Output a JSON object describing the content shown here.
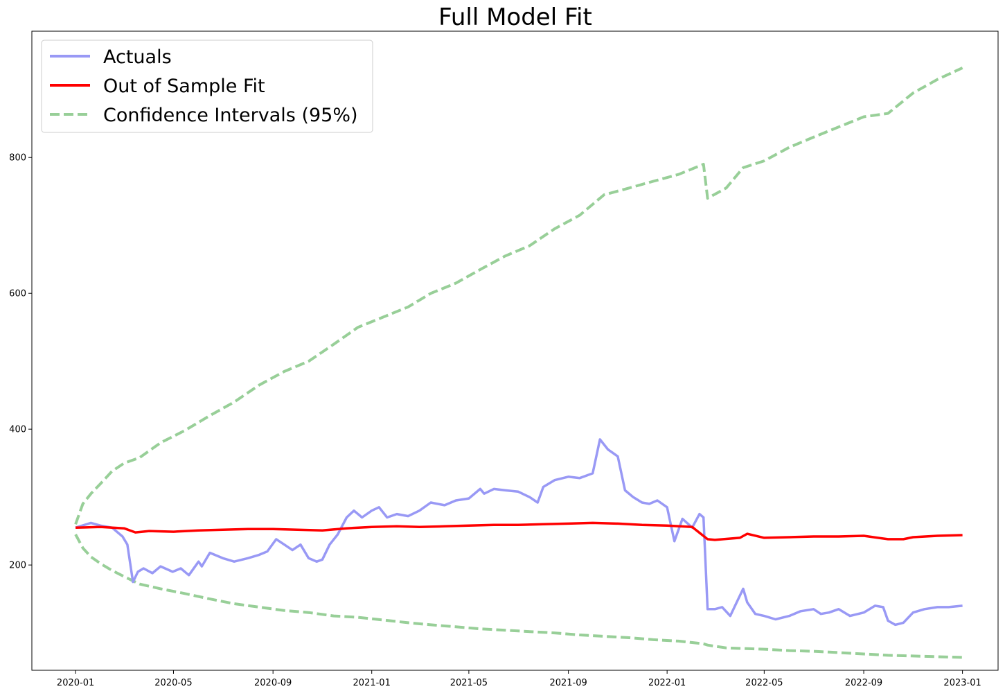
{
  "chart_data": {
    "type": "line",
    "title": "Full Model Fit",
    "xlabel": "",
    "ylabel": "",
    "x_range": [
      "2019-11-08",
      "2023-02-14"
    ],
    "ylim": [
      45,
      986
    ],
    "x_ticks": [
      "2020-01",
      "2020-05",
      "2020-09",
      "2021-01",
      "2021-05",
      "2021-09",
      "2022-01",
      "2022-05",
      "2022-09",
      "2023-01"
    ],
    "y_ticks": [
      200,
      400,
      600,
      800
    ],
    "grid": false,
    "legend_position": "top-left",
    "legend": [
      "Actuals",
      "Out of Sample Fit",
      "Confidence Intervals (95%)"
    ],
    "colors": {
      "actuals": "#9999f5",
      "fit": "#ff0000",
      "ci": "#98cf98"
    },
    "series": [
      {
        "name": "Actuals",
        "x": [
          "2020-01-01",
          "2020-01-20",
          "2020-02-01",
          "2020-02-15",
          "2020-02-28",
          "2020-03-05",
          "2020-03-12",
          "2020-03-18",
          "2020-03-25",
          "2020-04-05",
          "2020-04-15",
          "2020-04-30",
          "2020-05-10",
          "2020-05-20",
          "2020-06-01",
          "2020-06-05",
          "2020-06-15",
          "2020-07-01",
          "2020-07-15",
          "2020-08-01",
          "2020-08-15",
          "2020-08-25",
          "2020-09-05",
          "2020-09-15",
          "2020-09-25",
          "2020-10-05",
          "2020-10-15",
          "2020-10-25",
          "2020-11-01",
          "2020-11-10",
          "2020-11-20",
          "2020-12-01",
          "2020-12-10",
          "2020-12-20",
          "2021-01-01",
          "2021-01-10",
          "2021-01-20",
          "2021-02-01",
          "2021-02-15",
          "2021-03-01",
          "2021-03-15",
          "2021-04-01",
          "2021-04-15",
          "2021-05-01",
          "2021-05-15",
          "2021-05-20",
          "2021-06-01",
          "2021-06-15",
          "2021-07-01",
          "2021-07-15",
          "2021-07-25",
          "2021-08-01",
          "2021-08-15",
          "2021-09-01",
          "2021-09-15",
          "2021-10-01",
          "2021-10-10",
          "2021-10-20",
          "2021-11-01",
          "2021-11-10",
          "2021-11-20",
          "2021-12-01",
          "2021-12-10",
          "2021-12-20",
          "2022-01-01",
          "2022-01-10",
          "2022-01-20",
          "2022-02-01",
          "2022-02-10",
          "2022-02-15",
          "2022-02-20",
          "2022-03-01",
          "2022-03-10",
          "2022-03-20",
          "2022-03-28",
          "2022-04-05",
          "2022-04-10",
          "2022-04-20",
          "2022-05-01",
          "2022-05-15",
          "2022-06-01",
          "2022-06-15",
          "2022-07-01",
          "2022-07-10",
          "2022-07-20",
          "2022-08-01",
          "2022-08-15",
          "2022-09-01",
          "2022-09-15",
          "2022-09-25",
          "2022-10-01",
          "2022-10-10",
          "2022-10-20",
          "2022-11-01",
          "2022-11-15",
          "2022-12-01",
          "2022-12-15",
          "2023-01-01"
        ],
        "y": [
          255,
          262,
          258,
          255,
          242,
          230,
          175,
          190,
          195,
          188,
          198,
          190,
          195,
          185,
          205,
          198,
          218,
          210,
          205,
          210,
          215,
          220,
          238,
          230,
          222,
          230,
          210,
          205,
          208,
          230,
          245,
          270,
          280,
          270,
          280,
          285,
          270,
          275,
          272,
          280,
          292,
          288,
          295,
          298,
          312,
          305,
          312,
          310,
          308,
          300,
          292,
          315,
          325,
          330,
          328,
          335,
          385,
          370,
          360,
          310,
          300,
          292,
          290,
          295,
          285,
          235,
          268,
          255,
          275,
          270,
          135,
          135,
          138,
          125,
          145,
          165,
          145,
          128,
          125,
          120,
          125,
          132,
          135,
          128,
          130,
          135,
          125,
          130,
          140,
          138,
          118,
          112,
          115,
          130,
          135,
          138,
          138,
          140
        ]
      },
      {
        "name": "Out of Sample Fit",
        "x": [
          "2020-01-01",
          "2020-02-01",
          "2020-03-01",
          "2020-03-15",
          "2020-04-01",
          "2020-05-01",
          "2020-06-01",
          "2020-07-01",
          "2020-08-01",
          "2020-09-01",
          "2020-10-01",
          "2020-11-01",
          "2020-12-01",
          "2021-01-01",
          "2021-02-01",
          "2021-03-01",
          "2021-04-01",
          "2021-05-01",
          "2021-06-01",
          "2021-07-01",
          "2021-08-01",
          "2021-09-01",
          "2021-10-01",
          "2021-11-01",
          "2021-12-01",
          "2022-01-01",
          "2022-02-01",
          "2022-02-20",
          "2022-03-01",
          "2022-04-01",
          "2022-04-10",
          "2022-05-01",
          "2022-06-01",
          "2022-07-01",
          "2022-08-01",
          "2022-09-01",
          "2022-10-01",
          "2022-10-20",
          "2022-11-01",
          "2022-12-01",
          "2023-01-01"
        ],
        "y": [
          255,
          256,
          254,
          248,
          250,
          249,
          251,
          252,
          253,
          253,
          252,
          251,
          254,
          256,
          257,
          256,
          257,
          258,
          259,
          259,
          260,
          261,
          262,
          261,
          259,
          258,
          256,
          238,
          237,
          240,
          246,
          240,
          241,
          242,
          242,
          243,
          238,
          238,
          241,
          243,
          244
        ]
      },
      {
        "name": "Confidence Intervals (95%)",
        "x": [
          "2020-01-01",
          "2020-01-10",
          "2020-01-20",
          "2020-02-01",
          "2020-02-15",
          "2020-03-01",
          "2020-03-20",
          "2020-04-15",
          "2020-05-15",
          "2020-06-15",
          "2020-07-15",
          "2020-08-15",
          "2020-09-15",
          "2020-10-15",
          "2020-11-15",
          "2020-12-15",
          "2021-01-15",
          "2021-02-15",
          "2021-03-15",
          "2021-04-15",
          "2021-05-15",
          "2021-06-15",
          "2021-07-15",
          "2021-08-15",
          "2021-09-15",
          "2021-10-15",
          "2021-11-15",
          "2021-12-15",
          "2022-01-15",
          "2022-02-15",
          "2022-02-20",
          "2022-03-15",
          "2022-04-05",
          "2022-05-01",
          "2022-06-01",
          "2022-07-01",
          "2022-08-01",
          "2022-09-01",
          "2022-10-01",
          "2022-11-01",
          "2022-12-01",
          "2023-01-01"
        ],
        "y": [
          260,
          290,
          305,
          320,
          338,
          350,
          358,
          380,
          398,
          420,
          440,
          465,
          485,
          500,
          525,
          550,
          565,
          580,
          600,
          615,
          635,
          655,
          670,
          695,
          715,
          745,
          755,
          765,
          775,
          790,
          740,
          755,
          785,
          795,
          815,
          830,
          845,
          860,
          865,
          895,
          915,
          932
        ]
      },
      {
        "name": "",
        "x": [
          "2020-01-01",
          "2020-01-10",
          "2020-01-20",
          "2020-02-01",
          "2020-02-15",
          "2020-03-01",
          "2020-03-20",
          "2020-04-15",
          "2020-05-15",
          "2020-06-15",
          "2020-07-15",
          "2020-08-15",
          "2020-09-15",
          "2020-10-15",
          "2020-11-15",
          "2020-12-15",
          "2021-01-15",
          "2021-02-15",
          "2021-03-15",
          "2021-04-15",
          "2021-05-15",
          "2021-06-15",
          "2021-07-15",
          "2021-08-15",
          "2021-09-15",
          "2021-10-15",
          "2021-11-15",
          "2021-12-15",
          "2022-01-15",
          "2022-02-15",
          "2022-02-20",
          "2022-03-15",
          "2022-04-05",
          "2022-05-01",
          "2022-06-01",
          "2022-07-01",
          "2022-08-01",
          "2022-09-01",
          "2022-10-01",
          "2022-11-01",
          "2022-12-01",
          "2023-01-01"
        ],
        "y": [
          245,
          225,
          212,
          202,
          192,
          183,
          172,
          165,
          158,
          150,
          143,
          138,
          133,
          130,
          125,
          123,
          119,
          115,
          112,
          109,
          106,
          104,
          102,
          100,
          97,
          95,
          93,
          90,
          88,
          84,
          82,
          78,
          77,
          76,
          74,
          73,
          71,
          69,
          67,
          66,
          65,
          64
        ]
      }
    ]
  }
}
